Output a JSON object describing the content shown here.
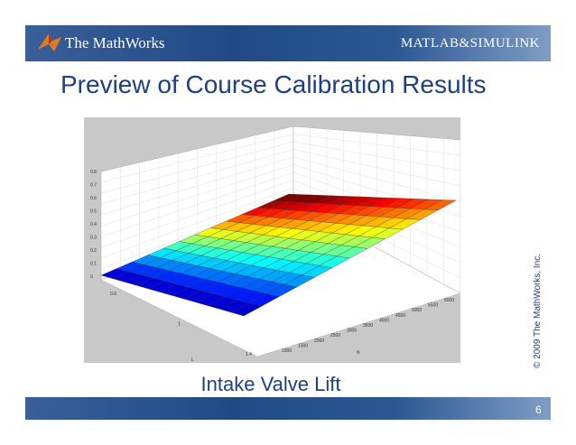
{
  "header": {
    "logo": "The MathWorks",
    "product": "MATLAB&SIMULINK"
  },
  "title": "Preview of Course Calibration Results",
  "figure": {
    "z_ticks": [
      "0",
      "0.1",
      "0.2",
      "0.3",
      "0.4",
      "0.5",
      "0.6",
      "0.7",
      "0.8"
    ],
    "n_ticks": [
      "1000",
      "1500",
      "2000",
      "2500",
      "3000",
      "3500",
      "4000",
      "4500",
      "5000",
      "5500",
      "6000"
    ],
    "l_ticks": [
      "0.6",
      "1",
      "1.4"
    ],
    "n_label": "N",
    "l_label": "L"
  },
  "caption": "Intake Valve Lift",
  "copyright": "© 2009 The MathWorks, Inc.",
  "page_number": "6"
}
